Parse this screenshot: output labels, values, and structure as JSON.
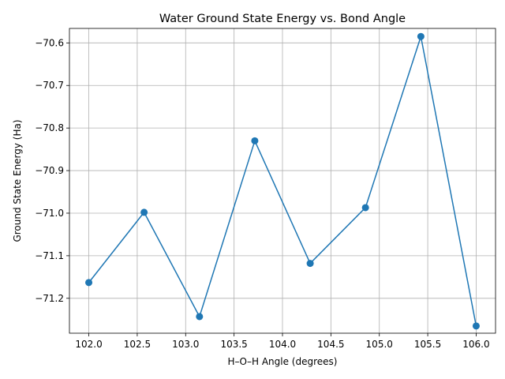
{
  "chart_data": {
    "type": "line",
    "title": "Water Ground State Energy vs. Bond Angle",
    "xlabel": "H–O–H Angle (degrees)",
    "ylabel": "Ground State Energy (Ha)",
    "xlim": [
      101.8,
      106.2
    ],
    "ylim": [
      -71.282,
      -70.566
    ],
    "grid": true,
    "colors": {
      "series": "#1f77b4"
    },
    "x_ticks": [
      102.0,
      102.5,
      103.0,
      103.5,
      104.0,
      104.5,
      105.0,
      105.5,
      106.0
    ],
    "x_tick_labels": [
      "102.0",
      "102.5",
      "103.0",
      "103.5",
      "104.0",
      "104.5",
      "105.0",
      "105.5",
      "106.0"
    ],
    "y_ticks": [
      -71.2,
      -71.1,
      -71.0,
      -70.9,
      -70.8,
      -70.7,
      -70.6
    ],
    "y_tick_labels": [
      "−71.2",
      "−71.1",
      "−71.0",
      "−70.9",
      "−70.8",
      "−70.7",
      "−70.6"
    ],
    "series": [
      {
        "marker": "circle",
        "x": [
          102.0,
          102.571,
          103.143,
          103.714,
          104.286,
          104.857,
          105.429,
          106.0
        ],
        "values": [
          -71.163,
          -70.998,
          -71.243,
          -70.83,
          -71.118,
          -70.987,
          -70.585,
          -71.265
        ]
      }
    ]
  }
}
